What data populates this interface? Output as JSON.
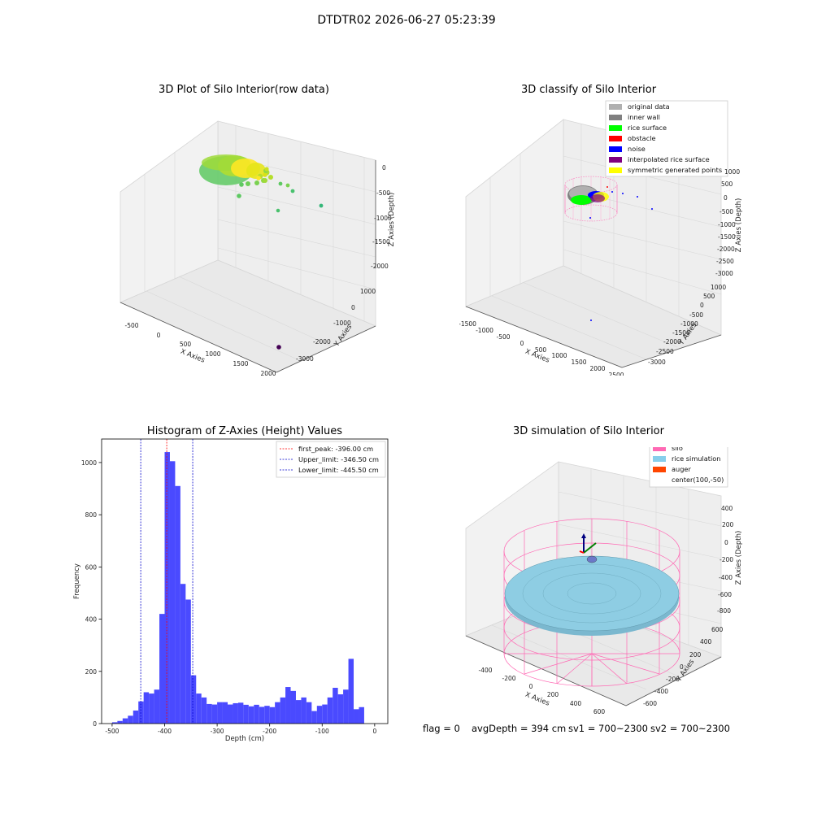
{
  "figure": {
    "suptitle": "DTDTR02 2026-06-27 05:23:39",
    "footer": {
      "flag": "flag = 0",
      "avg": "avgDepth = 394 cm",
      "sv1": "sv1 = 700~2300",
      "sv2": "sv2 = 700~2300"
    }
  },
  "chart_data": [
    {
      "type": "scatter3d",
      "title": "3D Plot of Silo Interior(row data)",
      "xlabel": "X Axies",
      "ylabel": "Y Axies",
      "zlabel": "Z Axies (Depth)",
      "xticks": [
        "-500",
        "0",
        "500",
        "1000",
        "1500",
        "2000"
      ],
      "yticks": [
        "1000",
        "0",
        "-1000",
        "-2000",
        "-3000"
      ],
      "zticks": [
        "0",
        "-500",
        "-1000",
        "-1500",
        "-2000"
      ],
      "colormap": [
        "#440154",
        "#3b528b",
        "#21918c",
        "#5ec962",
        "#fde725"
      ]
    },
    {
      "type": "scatter3d",
      "title": "3D classify of Silo Interior",
      "xlabel": "X Axies",
      "ylabel": "Y Axies",
      "zlabel": "Z Axies (Depth)",
      "xticks": [
        "-1500",
        "-1000",
        "-500",
        "0",
        "500",
        "1000",
        "1500",
        "2000",
        "2500"
      ],
      "yticks": [
        "1000",
        "500",
        "0",
        "-500",
        "-1000",
        "-1500",
        "-2000",
        "-2500",
        "-3000"
      ],
      "zticks": [
        "500",
        "0",
        "-500",
        "-1000",
        "-1500",
        "-2000",
        "-2500",
        "-3000"
      ],
      "zticks_top": [
        "1000"
      ],
      "legend_position": "upper-right",
      "legend": [
        {
          "label": "original data",
          "color": "#b0b0b0"
        },
        {
          "label": "inner wall",
          "color": "#808080"
        },
        {
          "label": "rice surface",
          "color": "#00ff00"
        },
        {
          "label": "obstacle",
          "color": "#ff0000"
        },
        {
          "label": "noise",
          "color": "#0000ff"
        },
        {
          "label": "interpolated rice surface",
          "color": "#800080"
        },
        {
          "label": "symmetric generated points",
          "color": "#ffff00"
        }
      ]
    },
    {
      "type": "bar",
      "title": "Histogram of Z-Axies (Height) Values",
      "xlabel": "Depth (cm)",
      "ylabel": "Frequency",
      "xlim": [
        -520,
        25
      ],
      "ylim": [
        0,
        1090
      ],
      "bin_width": 10,
      "bin_start": -500,
      "xticks": [
        -500,
        -400,
        -300,
        -200,
        -100,
        0
      ],
      "yticks": [
        0,
        200,
        400,
        600,
        800,
        1000
      ],
      "color": "#4a4aff",
      "values": [
        5,
        10,
        20,
        30,
        50,
        85,
        120,
        115,
        130,
        420,
        1040,
        1005,
        910,
        535,
        475,
        185,
        115,
        100,
        75,
        73,
        82,
        82,
        73,
        78,
        80,
        72,
        66,
        72,
        64,
        68,
        63,
        82,
        100,
        140,
        125,
        90,
        100,
        82,
        48,
        68,
        73,
        100,
        137,
        112,
        130,
        248,
        55,
        63
      ],
      "vlines": [
        {
          "x": -396.0,
          "color": "#ff0000",
          "label": "first_peak: -396.00 cm"
        },
        {
          "x": -346.5,
          "color": "#0000cc",
          "label": "Upper_limit: -346.50 cm"
        },
        {
          "x": -445.5,
          "color": "#0000cc",
          "label": "Lower_limit: -445.50 cm"
        }
      ],
      "legend_position": "upper-right"
    },
    {
      "type": "surface3d",
      "title": "3D simulation of Silo Interior",
      "xlabel": "X Axies",
      "ylabel": "Y Axies",
      "zlabel": "Z Axies (Depth)",
      "xticks": [
        "-400",
        "-200",
        "0",
        "200",
        "400",
        "600"
      ],
      "yticks": [
        "600",
        "400",
        "200",
        "0",
        "-200",
        "-400",
        "-600"
      ],
      "zticks": [
        "400",
        "200",
        "0",
        "-200",
        "-400",
        "-600",
        "-800"
      ],
      "legend_position": "upper-right",
      "legend": [
        {
          "label": "silo",
          "color": "#ff69b4"
        },
        {
          "label": "rice simulation",
          "color": "#87ceeb"
        },
        {
          "label": "auger",
          "color": "#ff4500"
        },
        {
          "label": "center(100,-50)",
          "color": ""
        }
      ]
    }
  ]
}
